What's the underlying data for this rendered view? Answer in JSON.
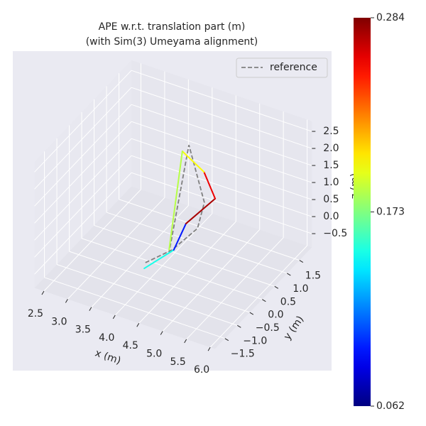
{
  "chart_data": {
    "type": "line3d",
    "title": "APE w.r.t. translation part (m)",
    "subtitle": "(with Sim(3) Umeyama alignment)",
    "xlabel": "x (m)",
    "ylabel": "y (m)",
    "zlabel": "z (m)",
    "xlim": [
      2.3,
      6.1
    ],
    "ylim": [
      -1.9,
      2.0
    ],
    "zlim": [
      -0.9,
      2.8
    ],
    "xticks": [
      2.5,
      {
        "value": 3,
        "label": "3.0"
      },
      3.5,
      {
        "value": 4,
        "label": "4.0"
      },
      4.5,
      {
        "value": 5,
        "label": "5.0"
      },
      5.5,
      {
        "value": 6,
        "label": "6.0"
      }
    ],
    "yticks": [
      {
        "value": -1.5,
        "label": "−1.5"
      },
      {
        "value": -1,
        "label": "−1.0"
      },
      {
        "value": -0.5,
        "label": "−0.5"
      },
      {
        "value": 0,
        "label": "0.0"
      },
      0.5,
      {
        "value": 1,
        "label": "1.0"
      },
      1.5
    ],
    "zticks": [
      {
        "value": -0.5,
        "label": "−0.5"
      },
      {
        "value": 0,
        "label": "0.0"
      },
      0.5,
      {
        "value": 1,
        "label": "1.0"
      },
      1.5,
      {
        "value": 2,
        "label": "2.0"
      },
      2.5
    ],
    "grid": true,
    "legend": "upper right",
    "series": [
      {
        "name": "reference",
        "color": "#808080",
        "dashed": true,
        "x": [
          4.06,
          4.41,
          4.79,
          4.83,
          4.4,
          4.14
        ],
        "y": [
          -0.8,
          -0.4,
          -0.1,
          0.1,
          0.3,
          0
        ],
        "z": [
          -0.17,
          0.06,
          0.64,
          1.27,
          2.6,
          -0.44
        ]
      },
      {
        "colormap": "jet",
        "x": [
          4.14,
          4.5,
          4.6,
          5.11,
          4.77,
          4.21,
          4.14
        ],
        "y": [
          -1,
          -0.5,
          -0.2,
          0,
          0.2,
          0.4,
          0
        ],
        "z": [
          -0.15,
          0.18,
          0.77,
          1.59,
          2.06,
          2.25,
          -0.37
        ],
        "errors": [
          0.15,
          0.095,
          0.275,
          0.26,
          0.2,
          0.185,
          0.17
        ]
      }
    ],
    "colorbar": {
      "clim": [
        0.062,
        0.284
      ],
      "ticks": [
        0.062,
        0.173,
        0.284
      ]
    }
  }
}
